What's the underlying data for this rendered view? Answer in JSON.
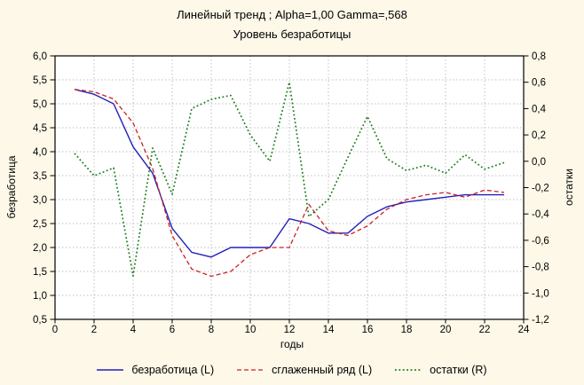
{
  "header": {
    "title": "Линейный тренд ; Alpha=1,00 Gamma=,568",
    "subtitle": "Уровень безработицы"
  },
  "chart_data": {
    "type": "line",
    "title": "Линейный тренд ; Alpha=1,00 Gamma=,568",
    "subtitle": "Уровень безработицы",
    "xlabel": "годы",
    "ylabel_left": "безработица",
    "ylabel_right": "остатки",
    "xlim": [
      0,
      24
    ],
    "ylim_left": [
      0.5,
      6.0
    ],
    "ylim_right": [
      -1.2,
      0.8
    ],
    "grid": true,
    "legend_position": "bottom",
    "x_ticks": [
      "0",
      "2",
      "4",
      "6",
      "8",
      "10",
      "12",
      "14",
      "16",
      "18",
      "20",
      "22",
      "24"
    ],
    "y_left_ticks": [
      "6,0",
      "5,5",
      "5,0",
      "4,5",
      "4,0",
      "3,5",
      "3,0",
      "2,5",
      "2,0",
      "1,5",
      "1,0",
      "0,5"
    ],
    "y_right_ticks": [
      "0,8",
      "0,6",
      "0,4",
      "0,2",
      "0,0",
      "-0,2",
      "-0,4",
      "-0,6",
      "-0,8",
      "-1,0",
      "-1,2"
    ],
    "x": [
      1,
      2,
      3,
      4,
      5,
      6,
      7,
      8,
      9,
      10,
      11,
      12,
      13,
      14,
      15,
      16,
      17,
      18,
      19,
      20,
      21,
      22,
      23
    ],
    "series": [
      {
        "name": "безработица (L)",
        "axis": "left",
        "color": "#2121bb",
        "style": "solid",
        "values": [
          5.3,
          5.2,
          5.0,
          4.1,
          3.55,
          2.4,
          1.9,
          1.8,
          2.0,
          2.0,
          2.0,
          2.6,
          2.5,
          2.3,
          2.3,
          2.65,
          2.85,
          2.95,
          3.0,
          3.05,
          3.1,
          3.1,
          3.1
        ]
      },
      {
        "name": "сглаженный ряд (L)",
        "axis": "left",
        "color": "#cc2222",
        "style": "dashed",
        "values": [
          5.3,
          5.25,
          5.1,
          4.6,
          3.65,
          2.25,
          1.55,
          1.4,
          1.5,
          1.85,
          2.0,
          2.0,
          2.9,
          2.35,
          2.25,
          2.45,
          2.8,
          3.0,
          3.1,
          3.15,
          3.05,
          3.2,
          3.15
        ]
      },
      {
        "name": "остатки (R)",
        "axis": "right",
        "color": "#1e7d1e",
        "style": "dotted",
        "values": [
          0.06,
          -0.11,
          -0.05,
          -0.87,
          0.1,
          -0.25,
          0.4,
          0.47,
          0.5,
          0.2,
          0.0,
          0.6,
          -0.42,
          -0.29,
          0.03,
          0.34,
          0.02,
          -0.07,
          -0.03,
          -0.09,
          0.05,
          -0.06,
          -0.01
        ]
      }
    ],
    "colors": {
      "background": "#fdf8e8",
      "plot_background": "#ffffff",
      "gridline": "#bfbfbf",
      "frame": "#000000"
    }
  }
}
